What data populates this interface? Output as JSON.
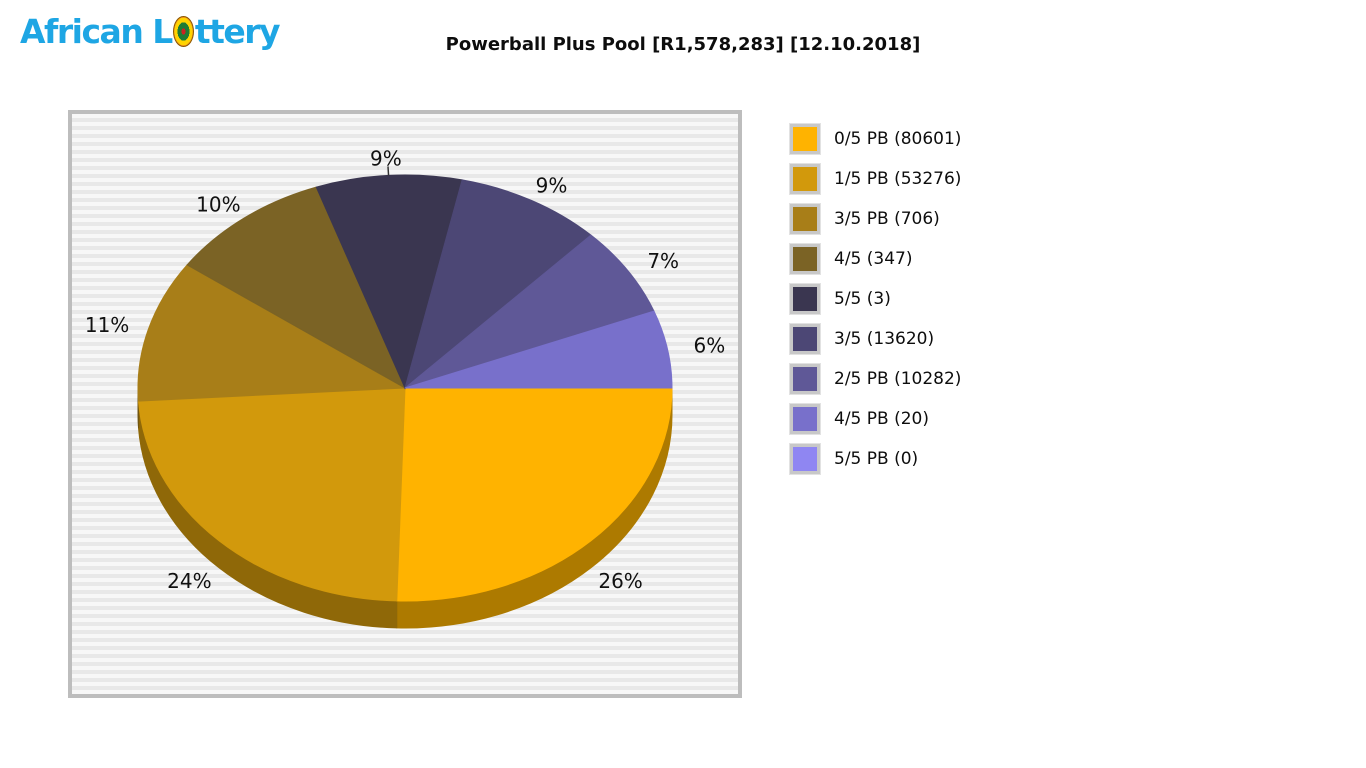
{
  "logo": {
    "prefix": "African L",
    "suffix": "ttery",
    "full_text": "African Lottery",
    "color": "#1ea6e4"
  },
  "header": {
    "title": "Powerball Plus Pool [R1,578,283] [12.10.2018]"
  },
  "chart_data": {
    "type": "pie",
    "title": "Powerball Plus Pool [R1,578,283] [12.10.2018]",
    "pool_amount": "R1,578,283",
    "draw_date": "12.10.2018",
    "direction": "clockwise",
    "start_angle_deg": 0,
    "legend_position": "right",
    "label_format": "percent",
    "style": "3d-pie",
    "slices": [
      {
        "legend_label": "0/5 PB (80601)",
        "division": "0/5 PB",
        "count": 80601,
        "percent": 26,
        "color": "#FFB300"
      },
      {
        "legend_label": "1/5 PB (53276)",
        "division": "1/5 PB",
        "count": 53276,
        "percent": 24,
        "color": "#D2990C"
      },
      {
        "legend_label": "3/5 PB (706)",
        "division": "3/5 PB",
        "count": 706,
        "percent": 11,
        "color": "#A87E18"
      },
      {
        "legend_label": "4/5 (347)",
        "division": "4/5",
        "count": 347,
        "percent": 10,
        "color": "#7B6325"
      },
      {
        "legend_label": "5/5 (3)",
        "division": "5/5",
        "count": 3,
        "percent": 9,
        "color": "#3A3650"
      },
      {
        "legend_label": "3/5 (13620)",
        "division": "3/5",
        "count": 13620,
        "percent": 9,
        "color": "#4C4775"
      },
      {
        "legend_label": "2/5 PB (10282)",
        "division": "2/5 PB",
        "count": 10282,
        "percent": 7,
        "color": "#5F5897"
      },
      {
        "legend_label": "4/5 PB (20)",
        "division": "4/5 PB",
        "count": 20,
        "percent": 6,
        "color": "#7870CB"
      },
      {
        "legend_label": "5/5 PB (0)",
        "division": "5/5 PB",
        "count": 0,
        "percent": 0,
        "color": "#8F86F2"
      }
    ]
  }
}
